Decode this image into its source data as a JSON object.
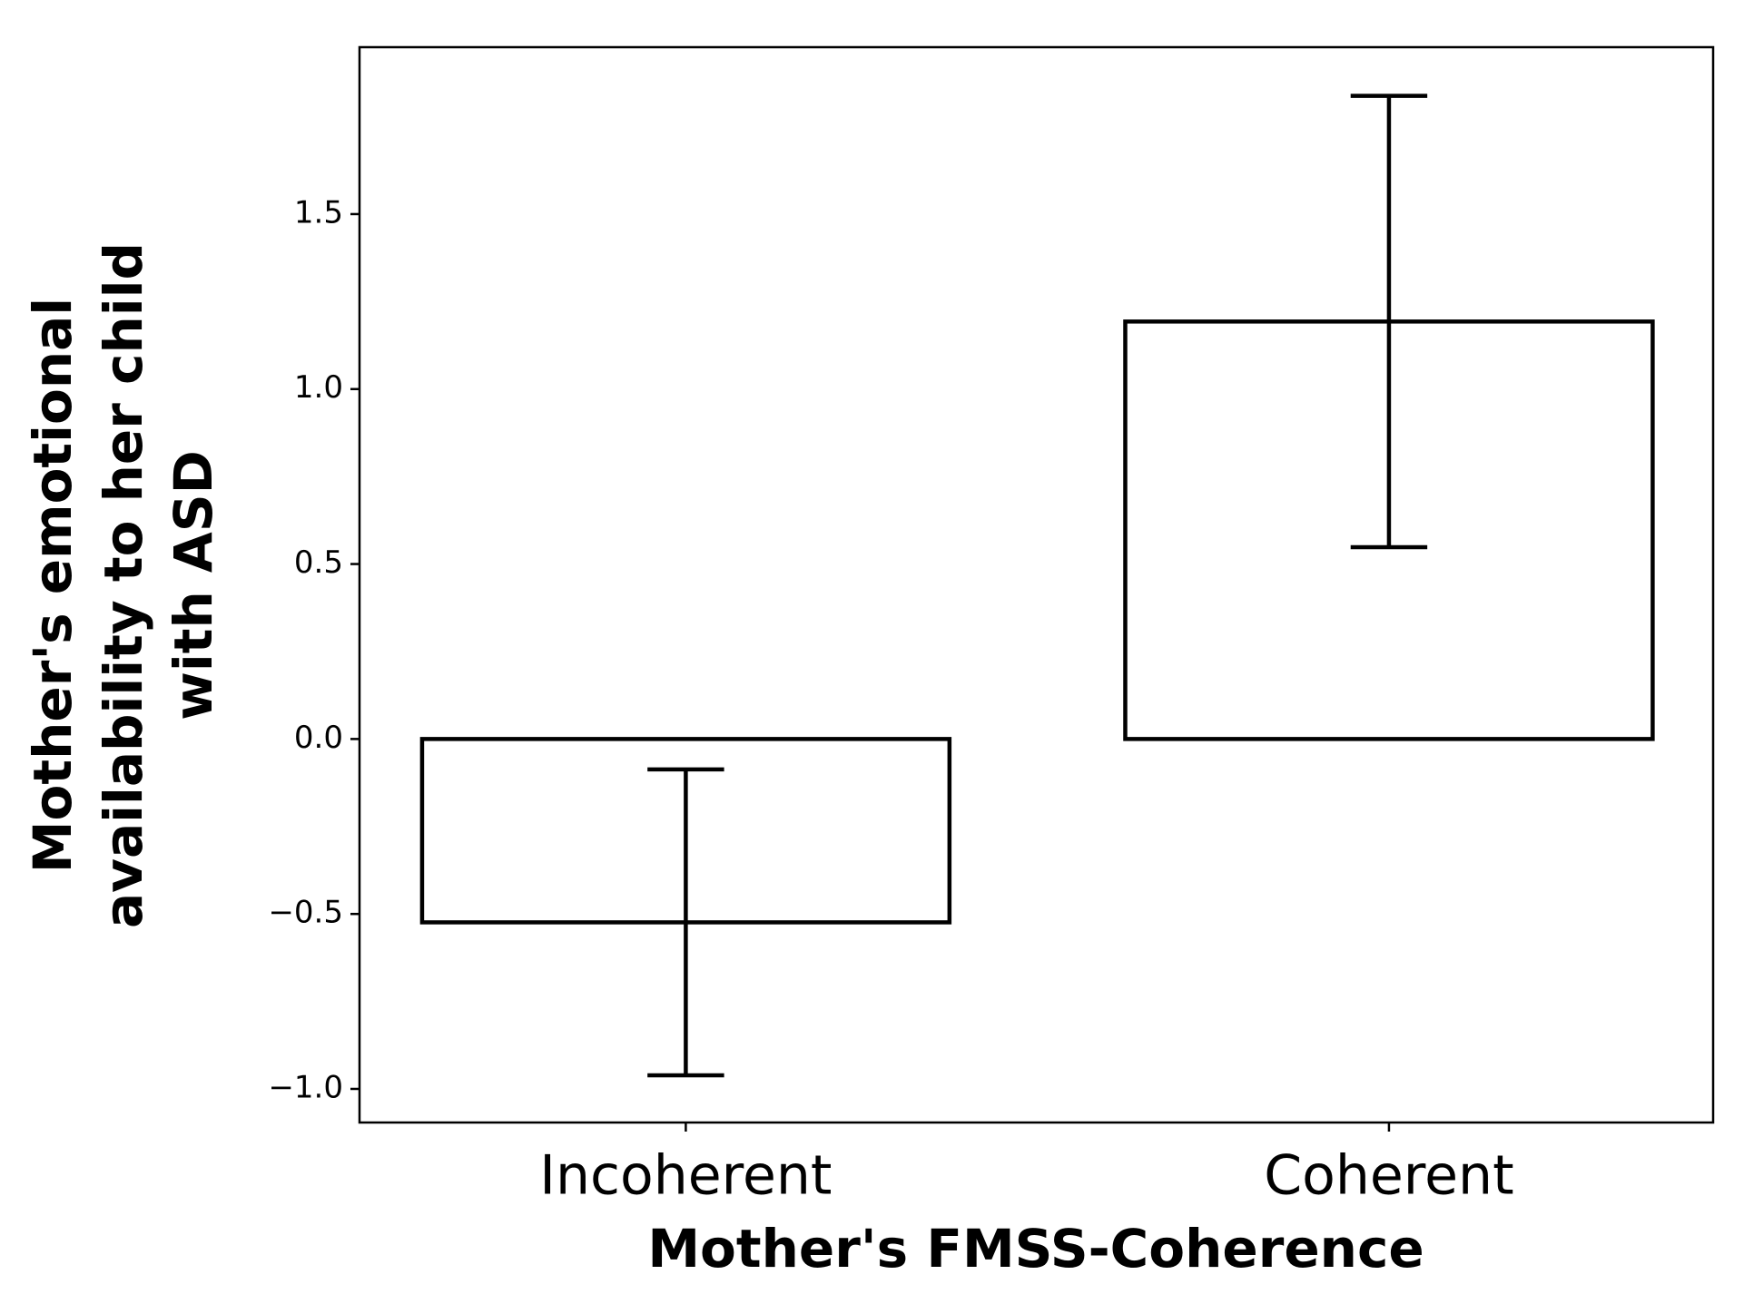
{
  "chart_data": {
    "type": "bar",
    "x_label": "Mother's FMSS-Coherence",
    "y_label": [
      "Mother's emotional",
      "availability to her child",
      "with ASD"
    ],
    "categories": [
      "Incoherent",
      "Coherent"
    ],
    "values": [
      -0.524,
      1.193
    ],
    "errors": [
      0.437,
      0.645
    ],
    "color": "#ffffff",
    "edge_color": "#000000",
    "ylim": [
      -1.096,
      1.977
    ],
    "yticks": [
      {
        "value": -1,
        "label": "−1.0"
      },
      {
        "value": -0.5,
        "label": "−0.5"
      },
      {
        "value": 0,
        "label": "0.0"
      },
      0.5,
      {
        "value": 1,
        "label": "1.0"
      },
      1.5
    ],
    "grid": false
  }
}
